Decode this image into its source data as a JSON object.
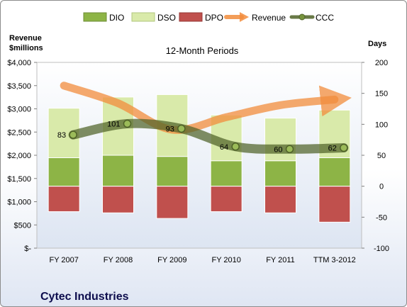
{
  "chart_data": {
    "type": "bar",
    "title": "12-Month Periods",
    "company": "Cytec Industries",
    "left_axis_title": [
      "Revenue",
      "$millions"
    ],
    "right_axis_title": "Days",
    "categories": [
      "FY 2007",
      "FY 2008",
      "FY 2009",
      "FY 2010",
      "FY 2011",
      "TTM 3-2012"
    ],
    "left_axis": {
      "min": 0,
      "max": 4000,
      "step": 500,
      "tick_labels": [
        "$-",
        "$500",
        "$1,000",
        "$1,500",
        "$2,000",
        "$2,500",
        "$3,000",
        "$3,500",
        "$4,000"
      ]
    },
    "right_axis": {
      "min": -100,
      "max": 200,
      "step": 50,
      "tick_labels": [
        "-100",
        "-50",
        "0",
        "50",
        "100",
        "150",
        "200"
      ]
    },
    "series": [
      {
        "name": "DIO",
        "type": "stacked-bar",
        "axis": "days",
        "color": "#8db446",
        "values": [
          46,
          50,
          48,
          41,
          41,
          46
        ]
      },
      {
        "name": "DSO",
        "type": "stacked-bar",
        "axis": "days",
        "color": "#d9eaaa",
        "values": [
          80,
          94,
          100,
          74,
          69,
          77
        ]
      },
      {
        "name": "DPO",
        "type": "stacked-bar",
        "axis": "days",
        "color": "#c0504d",
        "values": [
          -41,
          -43,
          -52,
          -41,
          -43,
          -58
        ]
      },
      {
        "name": "Revenue",
        "type": "line",
        "axis": "revenue",
        "color": "#f28c3c",
        "values": [
          3500,
          3120,
          2550,
          2820,
          3080,
          3200
        ]
      },
      {
        "name": "CCC",
        "type": "line",
        "axis": "days",
        "color": "#4f6228",
        "values": [
          83,
          101,
          93,
          64,
          60,
          62
        ],
        "data_labels": [
          "83",
          "101",
          "93",
          "64",
          "60",
          "62"
        ]
      }
    ],
    "legend_position": "top",
    "grid": false
  }
}
